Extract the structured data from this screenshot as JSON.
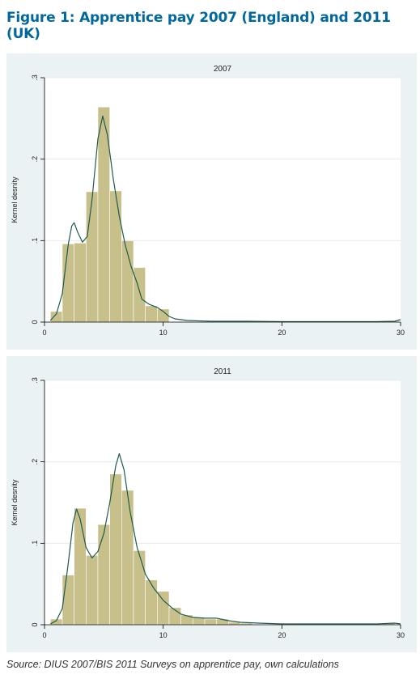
{
  "title": "Figure 1: Apprentice pay 2007 (England) and 2011 (UK)",
  "source": "Source: DIUS 2007/BIS 2011 Surveys on apprentice pay, own calculations",
  "colors": {
    "title": "#00689d",
    "panel_bg": "#eaf2f3",
    "bar_fill": "#c8c08a",
    "bar_stroke": "#ffffff",
    "curve": "#1f5a4e"
  },
  "chart_data": [
    {
      "type": "bar",
      "title": "2007",
      "xlabel": "",
      "ylabel": "Kernel desnity",
      "xlim": [
        0,
        30
      ],
      "ylim": [
        0,
        0.3
      ],
      "xticks": [
        "0",
        "10",
        "20",
        "30"
      ],
      "yticks": [
        "0",
        ".1",
        ".2",
        ".3"
      ],
      "grid": true,
      "bin_width": 1,
      "bins": [
        {
          "x0": 0.5,
          "x1": 1.5,
          "y": 0.013
        },
        {
          "x0": 1.5,
          "x1": 2.5,
          "y": 0.096
        },
        {
          "x0": 2.5,
          "x1": 3.5,
          "y": 0.097
        },
        {
          "x0": 3.5,
          "x1": 4.5,
          "y": 0.16
        },
        {
          "x0": 4.5,
          "x1": 5.5,
          "y": 0.264
        },
        {
          "x0": 5.5,
          "x1": 6.5,
          "y": 0.161
        },
        {
          "x0": 6.5,
          "x1": 7.5,
          "y": 0.1
        },
        {
          "x0": 7.5,
          "x1": 8.5,
          "y": 0.067
        },
        {
          "x0": 8.5,
          "x1": 9.5,
          "y": 0.02
        },
        {
          "x0": 9.5,
          "x1": 10.5,
          "y": 0.016
        },
        {
          "x0": 28.5,
          "x1": 29.5,
          "y": 0.001
        }
      ],
      "kde": [
        [
          0.5,
          0.002
        ],
        [
          1,
          0.01
        ],
        [
          1.5,
          0.035
        ],
        [
          2,
          0.095
        ],
        [
          2.3,
          0.118
        ],
        [
          2.5,
          0.122
        ],
        [
          2.8,
          0.11
        ],
        [
          3.2,
          0.098
        ],
        [
          3.6,
          0.105
        ],
        [
          4,
          0.15
        ],
        [
          4.5,
          0.225
        ],
        [
          4.9,
          0.253
        ],
        [
          5.3,
          0.23
        ],
        [
          5.8,
          0.175
        ],
        [
          6.3,
          0.13
        ],
        [
          6.8,
          0.095
        ],
        [
          7.3,
          0.068
        ],
        [
          7.8,
          0.048
        ],
        [
          8.2,
          0.028
        ],
        [
          8.8,
          0.022
        ],
        [
          9.5,
          0.018
        ],
        [
          10,
          0.013
        ],
        [
          10.5,
          0.007
        ],
        [
          11,
          0.004
        ],
        [
          12,
          0.002
        ],
        [
          14,
          0.001
        ],
        [
          17,
          0.001
        ],
        [
          20,
          0.0005
        ],
        [
          25,
          0.0005
        ],
        [
          28,
          0.0005
        ],
        [
          29.5,
          0.001
        ],
        [
          30,
          0.003
        ]
      ]
    },
    {
      "type": "bar",
      "title": "2011",
      "xlabel": "",
      "ylabel": "Kernel desnity",
      "xlim": [
        0,
        30
      ],
      "ylim": [
        0,
        0.3
      ],
      "xticks": [
        "0",
        "10",
        "20",
        "30"
      ],
      "yticks": [
        "0",
        ".1",
        ".2",
        ".3"
      ],
      "grid": true,
      "bin_width": 1,
      "bins": [
        {
          "x0": 0.5,
          "x1": 1.5,
          "y": 0.007
        },
        {
          "x0": 1.5,
          "x1": 2.5,
          "y": 0.061
        },
        {
          "x0": 2.5,
          "x1": 3.5,
          "y": 0.143
        },
        {
          "x0": 3.5,
          "x1": 4.5,
          "y": 0.085
        },
        {
          "x0": 4.5,
          "x1": 5.5,
          "y": 0.123
        },
        {
          "x0": 5.5,
          "x1": 6.5,
          "y": 0.185
        },
        {
          "x0": 6.5,
          "x1": 7.5,
          "y": 0.165
        },
        {
          "x0": 7.5,
          "x1": 8.5,
          "y": 0.091
        },
        {
          "x0": 8.5,
          "x1": 9.5,
          "y": 0.055
        },
        {
          "x0": 9.5,
          "x1": 10.5,
          "y": 0.041
        },
        {
          "x0": 10.5,
          "x1": 11.5,
          "y": 0.021
        },
        {
          "x0": 11.5,
          "x1": 12.5,
          "y": 0.012
        },
        {
          "x0": 12.5,
          "x1": 13.5,
          "y": 0.009
        },
        {
          "x0": 13.5,
          "x1": 14.5,
          "y": 0.007
        },
        {
          "x0": 14.5,
          "x1": 15.5,
          "y": 0.007
        },
        {
          "x0": 15.5,
          "x1": 16.5,
          "y": 0.003
        },
        {
          "x0": 16.5,
          "x1": 17.5,
          "y": 0.002
        },
        {
          "x0": 28.5,
          "x1": 29.5,
          "y": 0.002
        }
      ],
      "kde": [
        [
          0.5,
          0.001
        ],
        [
          1,
          0.005
        ],
        [
          1.5,
          0.02
        ],
        [
          2,
          0.075
        ],
        [
          2.4,
          0.125
        ],
        [
          2.7,
          0.142
        ],
        [
          3,
          0.13
        ],
        [
          3.5,
          0.095
        ],
        [
          4,
          0.082
        ],
        [
          4.5,
          0.09
        ],
        [
          5,
          0.112
        ],
        [
          5.5,
          0.15
        ],
        [
          6,
          0.195
        ],
        [
          6.3,
          0.21
        ],
        [
          6.7,
          0.19
        ],
        [
          7.2,
          0.14
        ],
        [
          7.8,
          0.095
        ],
        [
          8.5,
          0.062
        ],
        [
          9.2,
          0.045
        ],
        [
          10,
          0.03
        ],
        [
          10.8,
          0.02
        ],
        [
          11.5,
          0.013
        ],
        [
          12.5,
          0.009
        ],
        [
          13.5,
          0.008
        ],
        [
          14.5,
          0.008
        ],
        [
          15.5,
          0.005
        ],
        [
          16.5,
          0.003
        ],
        [
          18,
          0.002
        ],
        [
          20,
          0.001
        ],
        [
          25,
          0.001
        ],
        [
          28,
          0.001
        ],
        [
          29.5,
          0.002
        ],
        [
          30,
          0.001
        ]
      ]
    }
  ]
}
